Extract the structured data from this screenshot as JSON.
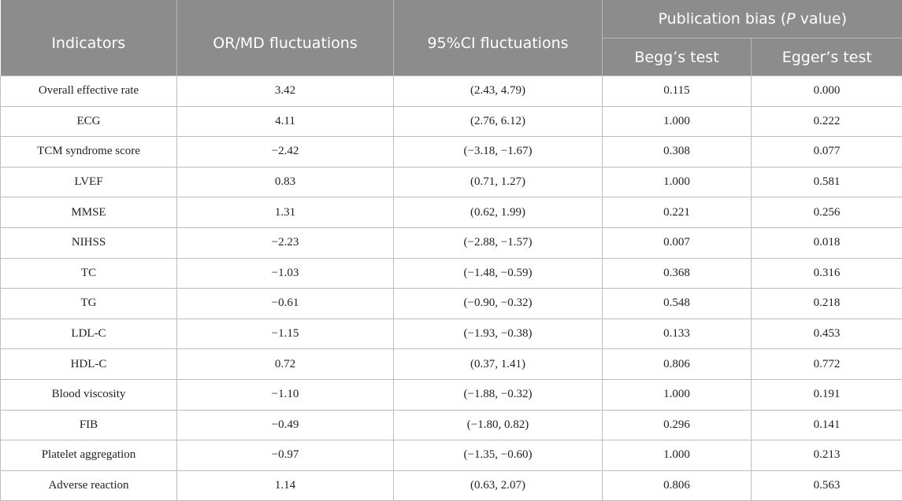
{
  "header": {
    "indicators": "Indicators",
    "or_md": "OR/MD fluctuations",
    "ci": "95%CI fluctuations",
    "pub_bias_prefix": "Publication bias (",
    "pub_bias_p": "P",
    "pub_bias_suffix": " value)",
    "begg": "Begg’s test",
    "egger": "Egger’s test"
  },
  "rows": [
    [
      "Overall effective rate",
      "3.42",
      "(2.43, 4.79)",
      "0.115",
      "0.000"
    ],
    [
      "ECG",
      "4.11",
      "(2.76, 6.12)",
      "1.000",
      "0.222"
    ],
    [
      "TCM syndrome score",
      "−2.42",
      "(−3.18, −1.67)",
      "0.308",
      "0.077"
    ],
    [
      "LVEF",
      "0.83",
      "(0.71, 1.27)",
      "1.000",
      "0.581"
    ],
    [
      "MMSE",
      "1.31",
      "(0.62, 1.99)",
      "0.221",
      "0.256"
    ],
    [
      "NIHSS",
      "−2.23",
      "(−2.88, −1.57)",
      "0.007",
      "0.018"
    ],
    [
      "TC",
      "−1.03",
      "(−1.48, −0.59)",
      "0.368",
      "0.316"
    ],
    [
      "TG",
      "−0.61",
      "(−0.90, −0.32)",
      "0.548",
      "0.218"
    ],
    [
      "LDL-C",
      "−1.15",
      "(−1.93, −0.38)",
      "0.133",
      "0.453"
    ],
    [
      "HDL-C",
      "0.72",
      "(0.37, 1.41)",
      "0.806",
      "0.772"
    ],
    [
      "Blood viscosity",
      "−1.10",
      "(−1.88, −0.32)",
      "1.000",
      "0.191"
    ],
    [
      "FIB",
      "−0.49",
      "(−1.80, 0.82)",
      "0.296",
      "0.141"
    ],
    [
      "Platelet aggregation",
      "−0.97",
      "(−1.35, −0.60)",
      "1.000",
      "0.213"
    ],
    [
      "Adverse reaction",
      "1.14",
      "(0.63, 2.07)",
      "0.806",
      "0.563"
    ]
  ]
}
